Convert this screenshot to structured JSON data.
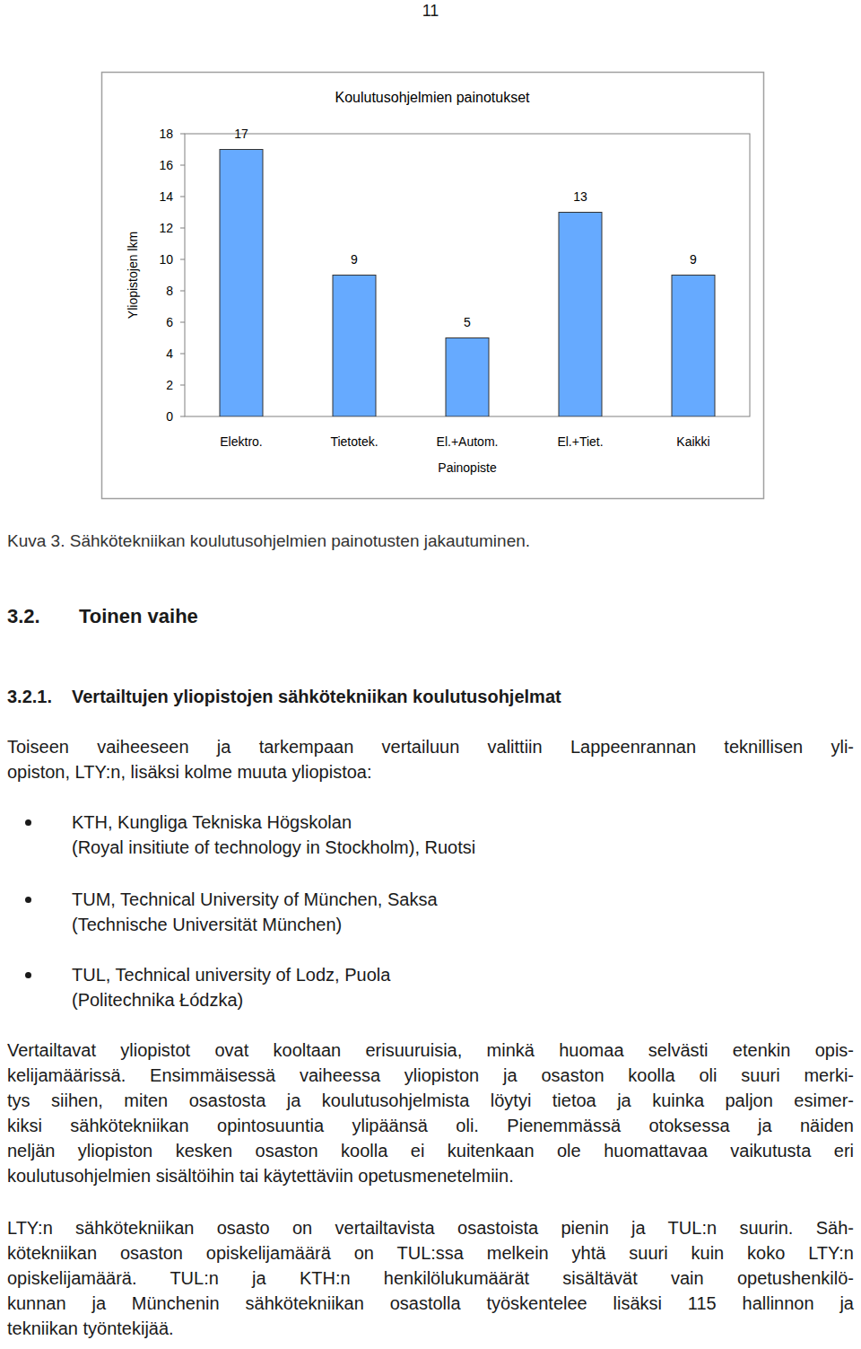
{
  "page_number": "11",
  "chart_data": {
    "type": "bar",
    "title": "Koulutusohjelmien painotukset",
    "y_label": "Yliopistojen lkm",
    "x_label": "Painopiste",
    "categories": [
      "Elektro.",
      "Tietotek.",
      "El.+Autom.",
      "El.+Tiet.",
      "Kaikki"
    ],
    "values": [
      17,
      9,
      5,
      13,
      9
    ],
    "color": "#66aaff",
    "ylim": [
      0,
      18
    ],
    "yticks": [
      0,
      2,
      4,
      6,
      8,
      10,
      12,
      14,
      16,
      18
    ],
    "grid": false,
    "data_labels": true
  },
  "caption": "Kuva 3. Sähkötekniikan koulutusohjelmien painotusten jakautuminen.",
  "heading": {
    "number": "3.2.",
    "title": "Toinen vaihe"
  },
  "subheading": {
    "number": "3.2.1.",
    "title": "Vertailtujen yliopistojen sähkötekniikan koulutusohjelmat"
  },
  "intro_lines": [
    "Toiseen vaiheeseen ja tarkempaan vertailuun valittiin Lappeenrannan teknillisen yli-",
    "opiston, LTY:n, lisäksi kolme muuta yliopistoa:"
  ],
  "bullets": [
    [
      "KTH, Kungliga Tekniska Högskolan",
      "(Royal insitiute of technology in Stockholm), Ruotsi"
    ],
    [
      "TUM, Technical University of München, Saksa",
      "(Technische Universität München)"
    ],
    [
      "TUL, Technical university of Lodz, Puola",
      "(Politechnika Łódzka)"
    ]
  ],
  "paragraphs": [
    [
      "Vertailtavat yliopistot ovat kooltaan erisuuruisia, minkä huomaa selvästi etenkin opis-",
      "kelijamäärissä. Ensimmäisessä vaiheessa yliopiston ja osaston koolla oli suuri merki-",
      "tys siihen, miten osastosta ja koulutusohjelmista löytyi tietoa ja kuinka paljon esimer-",
      "kiksi sähkötekniikan opintosuuntia ylipäänsä oli. Pienemmässä otoksessa ja näiden",
      "neljän yliopiston kesken osaston koolla ei kuitenkaan ole huomattavaa vaikutusta eri",
      "koulutusohjelmien sisältöihin tai käytettäviin opetusmenetelmiin."
    ],
    [
      "LTY:n sähkötekniikan osasto on vertailtavista osastoista pienin ja TUL:n suurin. Säh-",
      "kötekniikan osaston opiskelijamäärä on TUL:ssa melkein yhtä suuri kuin koko LTY:n",
      "opiskelijamäärä. TUL:n ja KTH:n henkilölukumäärät sisältävät vain opetushenkilö-",
      "kunnan ja Münchenin sähkötekniikan osastolla työskentelee lisäksi 115 hallinnon ja",
      "tekniikan työntekijää."
    ]
  ]
}
